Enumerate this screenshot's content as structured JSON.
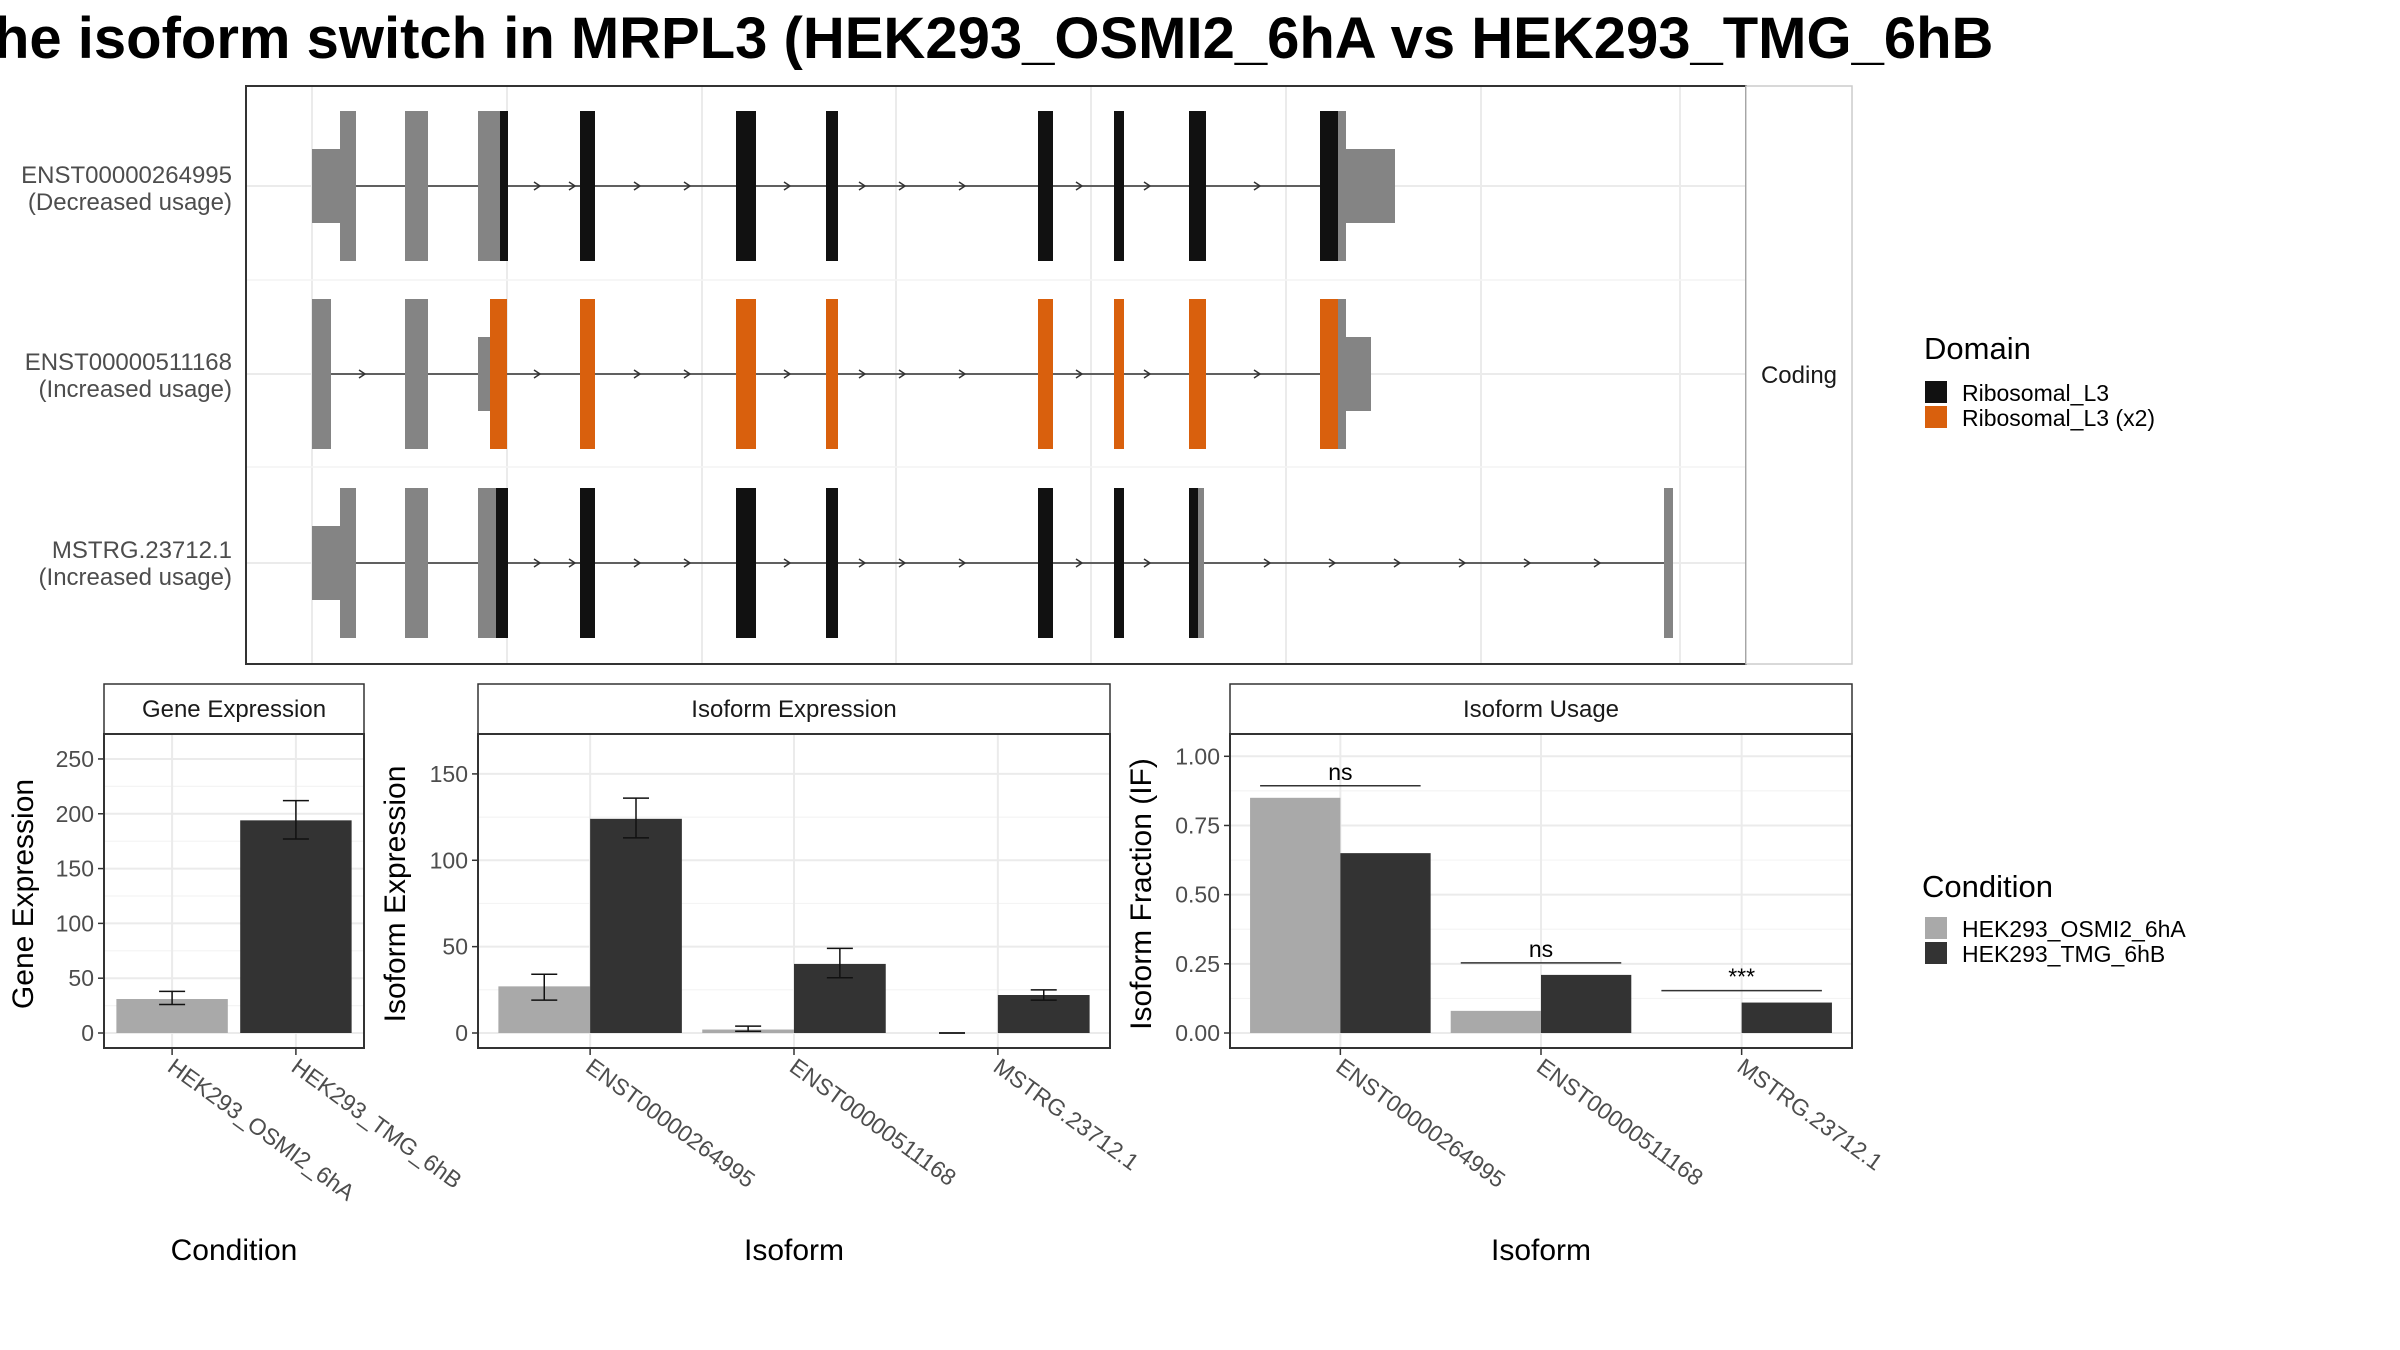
{
  "title": "he isoform switch in MRPL3 (HEK293_OSMI2_6hA vs HEK293_TMG_6hB",
  "colors": {
    "domain_a": "#111111",
    "domain_b": "#d9600d",
    "utr": "#848484",
    "cond_a": "#a9a9a9",
    "cond_b": "#333333"
  },
  "transcripts": {
    "strip_label": "Coding",
    "rows": [
      {
        "id": "ENST00000264995",
        "usage": "(Decreased usage)",
        "domain_color": "#111111"
      },
      {
        "id": "ENST00000511168",
        "usage": "(Increased usage)",
        "domain_color": "#d9600d"
      },
      {
        "id": "MSTRG.23712.1",
        "usage": "(Increased usage)",
        "domain_color": "#111111"
      }
    ]
  },
  "legend_domain": {
    "title": "Domain",
    "items": [
      {
        "label": "Ribosomal_L3",
        "color": "#111111"
      },
      {
        "label": "Ribosomal_L3 (x2)",
        "color": "#d9600d"
      }
    ]
  },
  "legend_condition": {
    "title": "Condition",
    "items": [
      {
        "label": "HEK293_OSMI2_6hA",
        "color": "#a9a9a9"
      },
      {
        "label": "HEK293_TMG_6hB",
        "color": "#333333"
      }
    ]
  },
  "chart_data": [
    {
      "type": "bar",
      "title": "Gene Expression",
      "xlabel": "Condition",
      "ylabel": "Gene Expression",
      "categories": [
        "HEK293_OSMI2_6hA",
        "HEK293_TMG_6hB"
      ],
      "values": [
        31,
        194
      ],
      "errors": [
        [
          26,
          38
        ],
        [
          177,
          212
        ]
      ],
      "ylim": [
        0,
        260
      ],
      "yticks": [
        0,
        50,
        100,
        150,
        200,
        250
      ],
      "ytick_labels": [
        "0",
        "50",
        "100",
        "150",
        "200",
        "250"
      ],
      "grid": true
    },
    {
      "type": "bar",
      "title": "Isoform Expression",
      "xlabel": "Isoform",
      "ylabel": "Isoform Expression",
      "categories": [
        "ENST00000264995",
        "ENST00000511168",
        "MSTRG.23712.1"
      ],
      "series": [
        {
          "name": "HEK293_OSMI2_6hA",
          "values": [
            27,
            2,
            0
          ],
          "errors": [
            [
              19,
              34
            ],
            [
              1,
              4
            ],
            [
              0,
              0
            ]
          ]
        },
        {
          "name": "HEK293_TMG_6hB",
          "values": [
            124,
            40,
            22
          ],
          "errors": [
            [
              113,
              136
            ],
            [
              32,
              49
            ],
            [
              19,
              25
            ]
          ]
        }
      ],
      "ylim": [
        0,
        165
      ],
      "yticks": [
        0,
        50,
        100,
        150
      ],
      "ytick_labels": [
        "0",
        "50",
        "100",
        "150"
      ],
      "grid": true
    },
    {
      "type": "bar",
      "title": "Isoform Usage",
      "xlabel": "Isoform",
      "ylabel": "Isoform Fraction (IF)",
      "categories": [
        "ENST00000264995",
        "ENST00000511168",
        "MSTRG.23712.1"
      ],
      "series": [
        {
          "name": "HEK293_OSMI2_6hA",
          "values": [
            0.85,
            0.08,
            0.0
          ]
        },
        {
          "name": "HEK293_TMG_6hB",
          "values": [
            0.65,
            0.21,
            0.11
          ]
        }
      ],
      "significance": [
        "ns",
        "ns",
        "***"
      ],
      "ylim": [
        0,
        1.03
      ],
      "yticks": [
        0,
        0.25,
        0.5,
        0.75,
        1.0
      ],
      "ytick_labels": [
        "0.00",
        "0.25",
        "0.50",
        "0.75",
        "1.00"
      ],
      "grid": true
    }
  ]
}
